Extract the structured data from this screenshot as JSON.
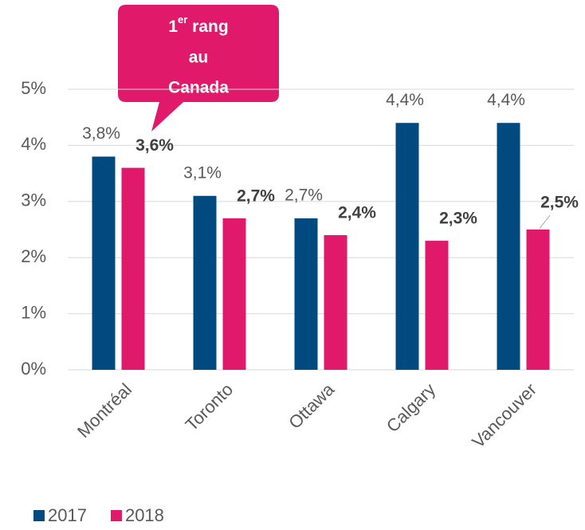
{
  "chart_data": {
    "type": "bar",
    "categories": [
      "Montréal",
      "Toronto",
      "Ottawa",
      "Calgary",
      "Vancouver"
    ],
    "series": [
      {
        "name": "2017",
        "color": "#004a80",
        "values": [
          3.8,
          3.1,
          2.7,
          4.4,
          4.4
        ],
        "value_labels": [
          "3,8%",
          "3,1%",
          "2,7%",
          "4,4%",
          "4,4%"
        ]
      },
      {
        "name": "2018",
        "color": "#e0196b",
        "values": [
          3.6,
          2.7,
          2.4,
          2.3,
          2.5
        ],
        "value_labels": [
          "3,6%",
          "2,7%",
          "2,4%",
          "2,3%",
          "2,5%"
        ]
      }
    ],
    "ylim": [
      0,
      5
    ],
    "yticks": [
      {
        "value": 0,
        "label": "0%"
      },
      {
        "value": 1,
        "label": "1%"
      },
      {
        "value": 2,
        "label": "2%"
      },
      {
        "value": 3,
        "label": "3%"
      },
      {
        "value": 4,
        "label": "4%"
      },
      {
        "value": 5,
        "label": "5%"
      }
    ],
    "grid": true,
    "legend": "bottom-left",
    "annotation": {
      "rank": "1",
      "suffix": "er",
      "rest": " rang",
      "lines": [
        "au",
        "Canada"
      ]
    }
  }
}
